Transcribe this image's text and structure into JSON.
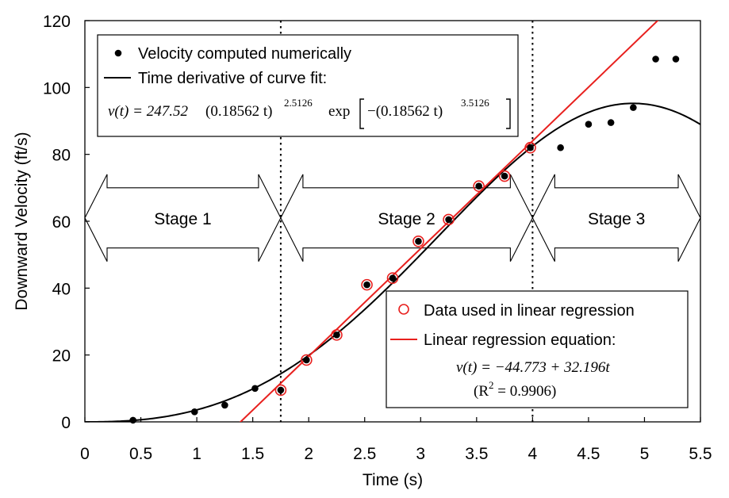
{
  "chart_data": {
    "type": "scatter",
    "xlabel": "Time (s)",
    "ylabel": "Downward Velocity (ft/s)",
    "xlim": [
      0,
      5.5
    ],
    "ylim": [
      0,
      120
    ],
    "x_ticks": [
      "0",
      "0.5",
      "1",
      "1.5",
      "2",
      "2.5",
      "3",
      "3.5",
      "4",
      "4.5",
      "5",
      "5.5"
    ],
    "y_ticks": [
      "0",
      "20",
      "40",
      "60",
      "80",
      "100",
      "120"
    ],
    "series": [
      {
        "name": "Velocity computed numerically",
        "style": "black-dot",
        "points": [
          [
            0.43,
            0.5
          ],
          [
            0.98,
            3
          ],
          [
            1.25,
            5
          ],
          [
            1.52,
            10
          ],
          [
            1.75,
            9.5
          ],
          [
            1.98,
            18.5
          ],
          [
            2.25,
            26
          ],
          [
            2.52,
            41
          ],
          [
            2.75,
            43
          ],
          [
            2.98,
            54
          ],
          [
            3.25,
            60.5
          ],
          [
            3.52,
            70.5
          ],
          [
            3.75,
            73.5
          ],
          [
            3.98,
            82
          ],
          [
            4.25,
            82
          ],
          [
            4.5,
            89
          ],
          [
            4.7,
            89.5
          ],
          [
            4.9,
            94
          ],
          [
            5.1,
            108.5
          ],
          [
            5.28,
            108.5
          ]
        ]
      },
      {
        "name": "Data used in linear regression",
        "style": "red-circle",
        "points": [
          [
            1.75,
            9.5
          ],
          [
            1.98,
            18.5
          ],
          [
            2.25,
            26
          ],
          [
            2.52,
            41
          ],
          [
            2.75,
            43
          ],
          [
            2.98,
            54
          ],
          [
            3.25,
            60.5
          ],
          [
            3.52,
            70.5
          ],
          [
            3.75,
            73.5
          ],
          [
            3.98,
            82
          ]
        ]
      },
      {
        "name": "Time derivative of curve fit:",
        "style": "black-line",
        "function": "weibull",
        "A": 247.52,
        "b": 0.18562,
        "p": 2.5126,
        "q": 3.5126
      },
      {
        "name": "Linear regression equation:",
        "style": "red-line",
        "function": "linear",
        "intercept": -44.773,
        "slope": 32.196
      }
    ],
    "dividers": [
      1.75,
      4.0
    ],
    "stages": [
      "Stage 1",
      "Stage 2",
      "Stage 3"
    ],
    "stage_arrow_y": [
      52,
      70
    ]
  },
  "legend_top": {
    "item1": "Velocity computed numerically",
    "item2": "Time derivative of curve fit:",
    "eq_lhs": "v(t) = 247.52",
    "eq_a": "(0.18562 t)",
    "eq_exp1": "2.5126",
    "eq_b": "exp",
    "eq_c": "−(0.18562 t)",
    "eq_exp2": "3.5126"
  },
  "legend_bottom": {
    "item1": "Data used in linear regression",
    "item2": "Linear regression equation:",
    "eq1": "v(t) = −44.773 + 32.196t",
    "eq2_pre": "(R",
    "eq2_sup": "2",
    "eq2_post": " = 0.9906)"
  },
  "colors": {
    "red": "#e8201e",
    "black": "#000000"
  }
}
